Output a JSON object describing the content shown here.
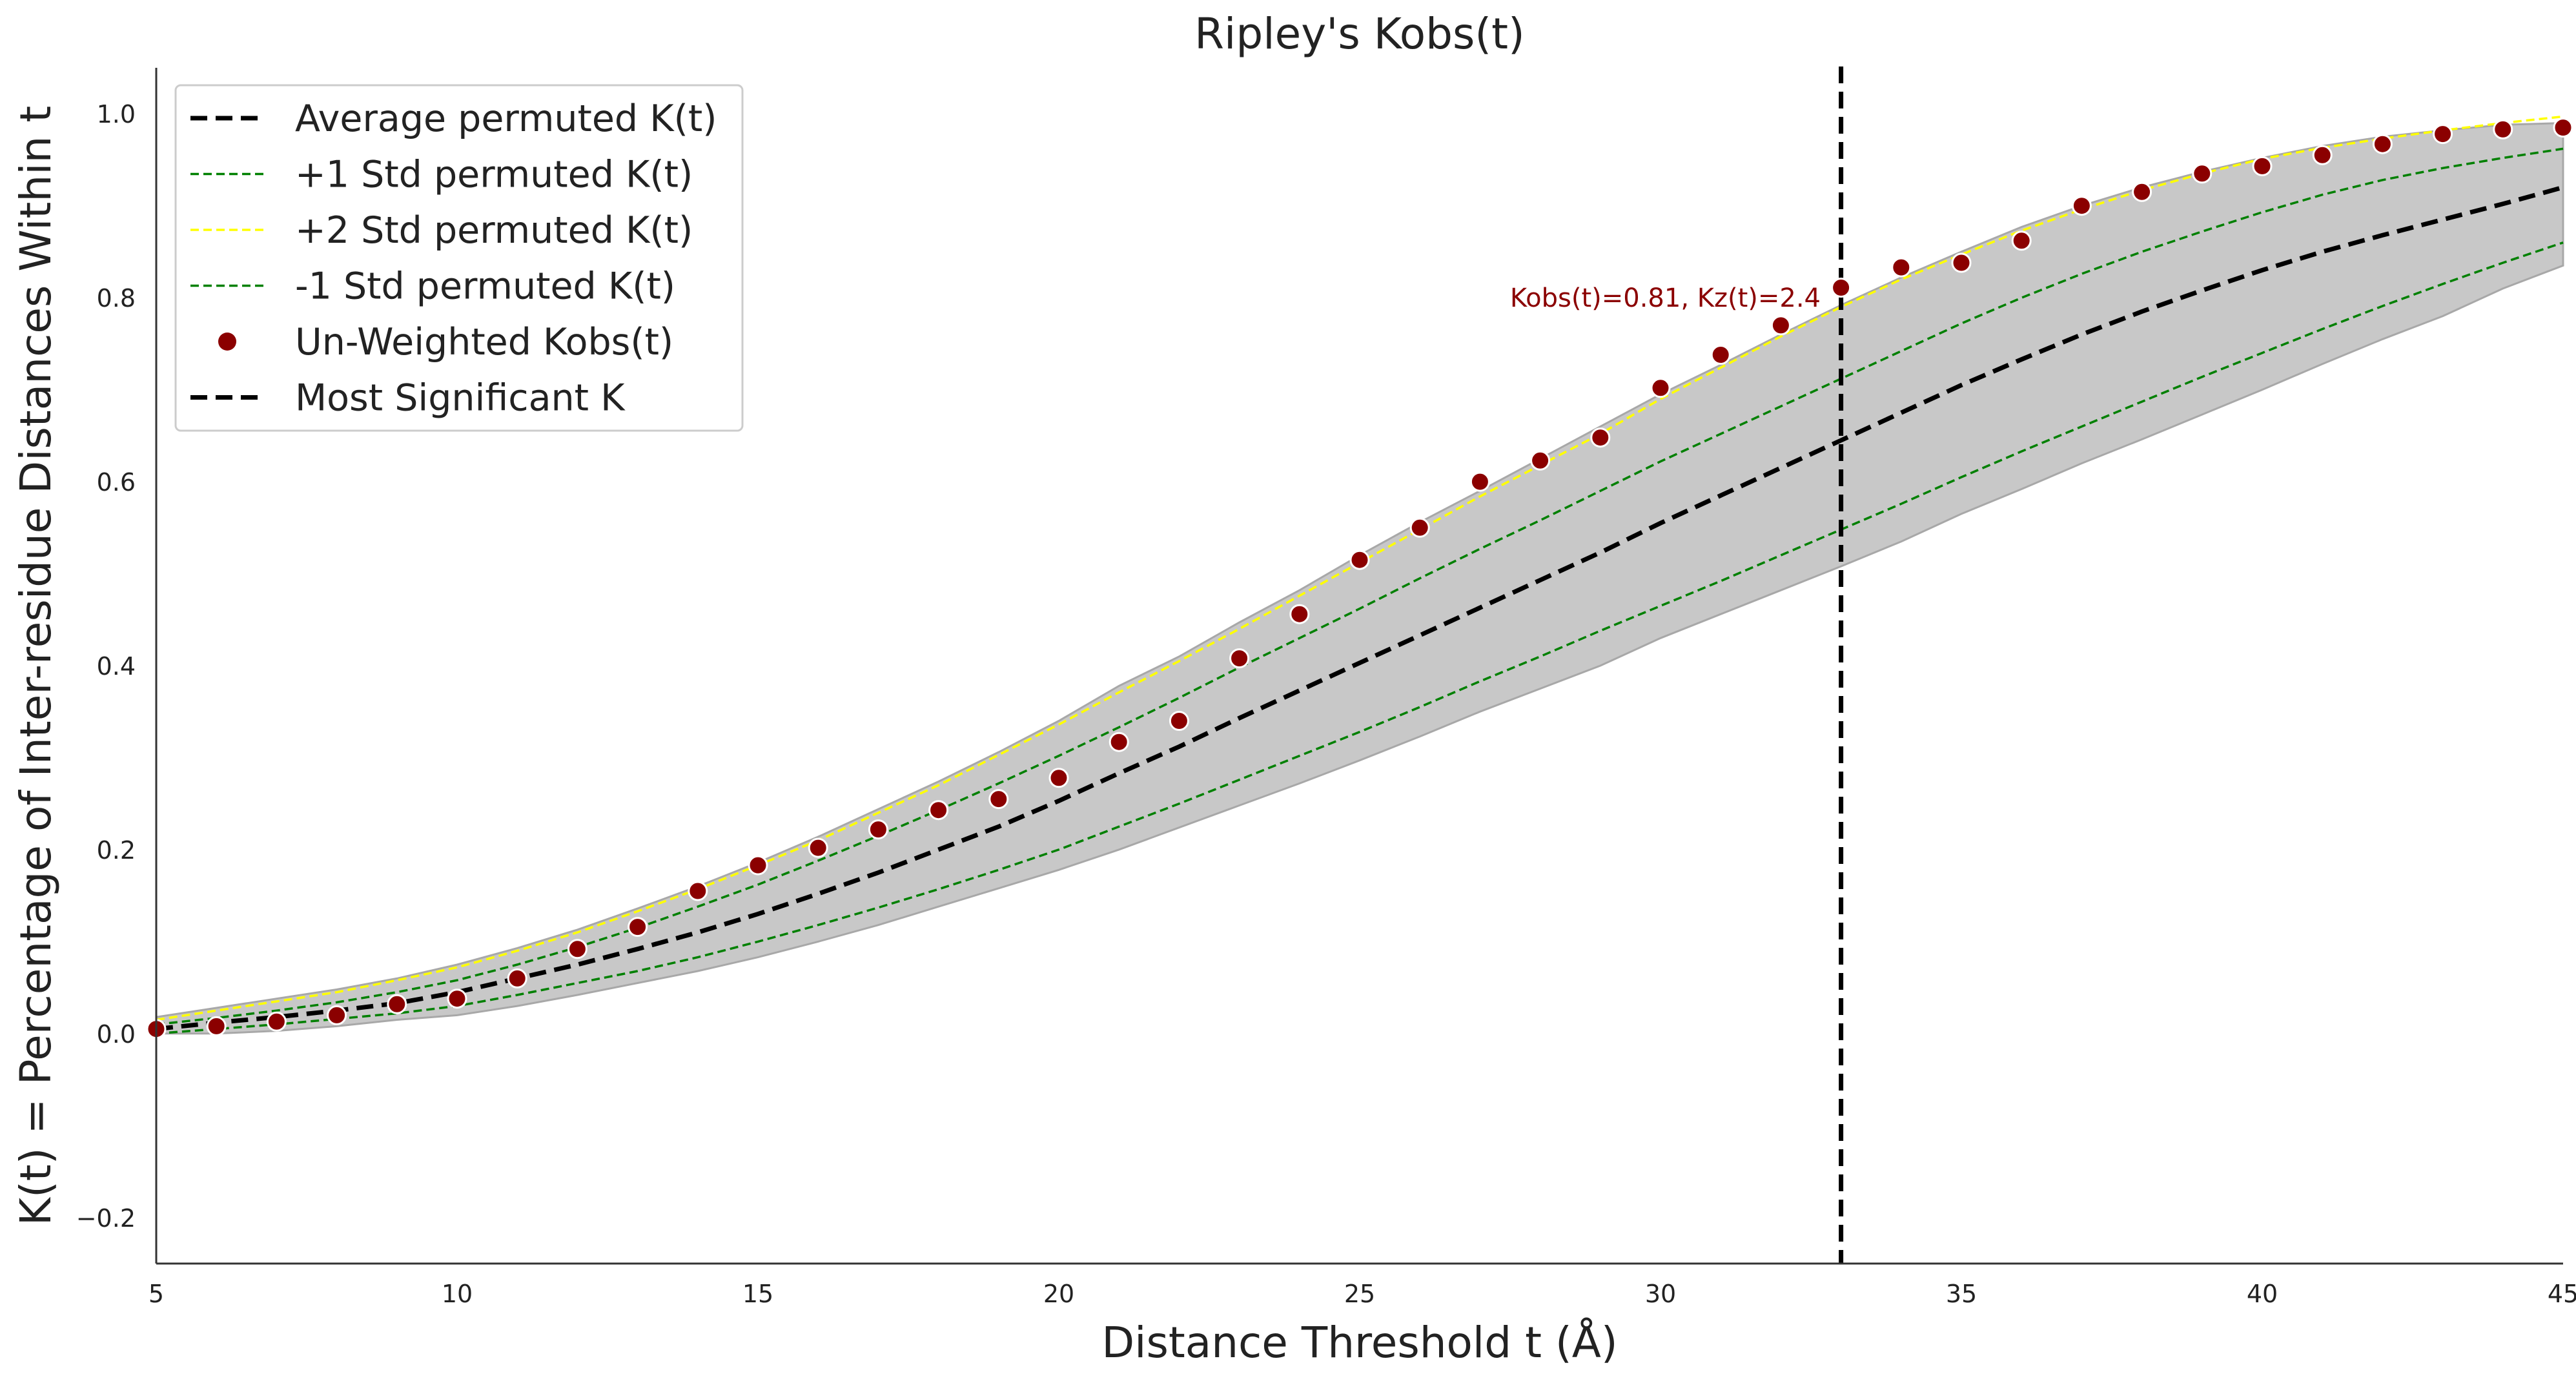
{
  "chart_data": {
    "type": "line",
    "title": "Ripley's Kobs(t)",
    "xlabel": "Distance Threshold t (Å)",
    "ylabel": "K(t) = Percentage of Inter-residue Distances Within t",
    "xlim": [
      5,
      45
    ],
    "ylim": [
      -0.25,
      1.05
    ],
    "xticks": [
      5,
      10,
      15,
      20,
      25,
      30,
      35,
      40,
      45
    ],
    "xtick_labels": [
      "5",
      "10",
      "15",
      "20",
      "25",
      "30",
      "35",
      "40",
      "45"
    ],
    "yticks": [
      -0.2,
      0.0,
      0.2,
      0.4,
      0.6,
      0.8,
      1.0
    ],
    "ytick_labels": [
      "−0.2",
      "0.0",
      "0.2",
      "0.4",
      "0.6",
      "0.8",
      "1.0"
    ],
    "grid": false,
    "legend_position": "top-left",
    "legend": [
      {
        "label": "Average permuted K(t)",
        "style": "thick-dash",
        "color": "#000000"
      },
      {
        "label": "+1 Std permuted K(t)",
        "style": "thin-dash",
        "color": "#008000"
      },
      {
        "label": "+2 Std permuted K(t)",
        "style": "thin-dash",
        "color": "#FFFF00"
      },
      {
        "label": "-1 Std permuted K(t)",
        "style": "thin-dash",
        "color": "#008000"
      },
      {
        "label": "Un-Weighted Kobs(t)",
        "style": "marker",
        "color": "#8B0000"
      },
      {
        "label": "Most Significant K",
        "style": "thick-dash",
        "color": "#000000"
      }
    ],
    "x": [
      5,
      6,
      7,
      8,
      9,
      10,
      11,
      12,
      13,
      14,
      15,
      16,
      17,
      18,
      19,
      20,
      21,
      22,
      23,
      24,
      25,
      26,
      27,
      28,
      29,
      30,
      31,
      32,
      33,
      34,
      35,
      36,
      37,
      38,
      39,
      40,
      41,
      42,
      43,
      44,
      45
    ],
    "series": [
      {
        "name": "Average permuted K(t)",
        "color": "#000000",
        "values": [
          0.005,
          0.012,
          0.018,
          0.025,
          0.033,
          0.045,
          0.06,
          0.075,
          0.092,
          0.11,
          0.13,
          0.152,
          0.175,
          0.2,
          0.225,
          0.253,
          0.283,
          0.312,
          0.343,
          0.373,
          0.403,
          0.433,
          0.463,
          0.493,
          0.523,
          0.555,
          0.585,
          0.615,
          0.645,
          0.675,
          0.705,
          0.733,
          0.76,
          0.785,
          0.808,
          0.83,
          0.85,
          0.868,
          0.885,
          0.902,
          0.92
        ]
      },
      {
        "name": "+1 Std permuted K(t)",
        "color": "#008000",
        "values": [
          0.01,
          0.017,
          0.025,
          0.034,
          0.045,
          0.058,
          0.075,
          0.094,
          0.115,
          0.138,
          0.162,
          0.188,
          0.215,
          0.243,
          0.272,
          0.302,
          0.333,
          0.365,
          0.398,
          0.43,
          0.462,
          0.495,
          0.527,
          0.558,
          0.59,
          0.622,
          0.652,
          0.682,
          0.712,
          0.742,
          0.772,
          0.8,
          0.826,
          0.85,
          0.872,
          0.893,
          0.912,
          0.928,
          0.941,
          0.952,
          0.962
        ]
      },
      {
        "name": "+2 Std permuted K(t)",
        "color": "#FFFF00",
        "values": [
          0.015,
          0.025,
          0.035,
          0.045,
          0.058,
          0.072,
          0.09,
          0.11,
          0.133,
          0.157,
          0.183,
          0.21,
          0.24,
          0.27,
          0.303,
          0.336,
          0.371,
          0.405,
          0.44,
          0.476,
          0.512,
          0.548,
          0.584,
          0.618,
          0.652,
          0.69,
          0.724,
          0.758,
          0.79,
          0.82,
          0.847,
          0.873,
          0.896,
          0.917,
          0.935,
          0.951,
          0.963,
          0.973,
          0.982,
          0.99,
          0.997
        ]
      },
      {
        "name": "-1 Std permuted K(t)",
        "color": "#008000",
        "values": [
          0.0,
          0.005,
          0.01,
          0.016,
          0.022,
          0.03,
          0.042,
          0.055,
          0.068,
          0.083,
          0.1,
          0.118,
          0.137,
          0.157,
          0.178,
          0.2,
          0.225,
          0.25,
          0.276,
          0.302,
          0.328,
          0.355,
          0.383,
          0.41,
          0.438,
          0.465,
          0.492,
          0.52,
          0.548,
          0.576,
          0.605,
          0.633,
          0.66,
          0.687,
          0.714,
          0.74,
          0.766,
          0.791,
          0.815,
          0.838,
          0.86
        ]
      },
      {
        "name": "Un-Weighted Kobs(t)",
        "color": "#8B0000",
        "values": [
          0.005,
          0.008,
          0.013,
          0.02,
          0.032,
          0.038,
          0.06,
          0.092,
          0.116,
          0.155,
          0.183,
          0.202,
          0.222,
          0.243,
          0.255,
          0.278,
          0.317,
          0.34,
          0.408,
          0.456,
          0.515,
          0.55,
          0.6,
          0.623,
          0.648,
          0.702,
          0.738,
          0.77,
          0.811,
          0.833,
          0.838,
          0.862,
          0.9,
          0.915,
          0.935,
          0.943,
          0.955,
          0.967,
          0.978,
          0.983,
          0.985
        ]
      }
    ],
    "band": {
      "color": "#C8C8C8",
      "upper": [
        0.018,
        0.028,
        0.038,
        0.048,
        0.06,
        0.075,
        0.093,
        0.113,
        0.136,
        0.16,
        0.186,
        0.214,
        0.244,
        0.274,
        0.306,
        0.34,
        0.378,
        0.41,
        0.447,
        0.482,
        0.52,
        0.556,
        0.59,
        0.625,
        0.66,
        0.695,
        0.727,
        0.76,
        0.792,
        0.822,
        0.85,
        0.877,
        0.9,
        0.92,
        0.937,
        0.952,
        0.965,
        0.975,
        0.982,
        0.988,
        0.99
      ],
      "lower": [
        0.0,
        0.0,
        0.003,
        0.008,
        0.015,
        0.02,
        0.03,
        0.042,
        0.055,
        0.068,
        0.083,
        0.1,
        0.118,
        0.138,
        0.158,
        0.178,
        0.2,
        0.224,
        0.248,
        0.272,
        0.297,
        0.323,
        0.35,
        0.375,
        0.4,
        0.43,
        0.456,
        0.482,
        0.508,
        0.535,
        0.565,
        0.592,
        0.62,
        0.646,
        0.673,
        0.7,
        0.728,
        0.755,
        0.78,
        0.81,
        0.835
      ]
    },
    "most_significant": {
      "x": 33,
      "name": "Most Significant K",
      "color": "#000000"
    },
    "annotation": {
      "text": "Kobs(t)=0.81, Kz(t)=2.4",
      "x": 33,
      "y": 0.81,
      "color": "#8B0000"
    }
  }
}
